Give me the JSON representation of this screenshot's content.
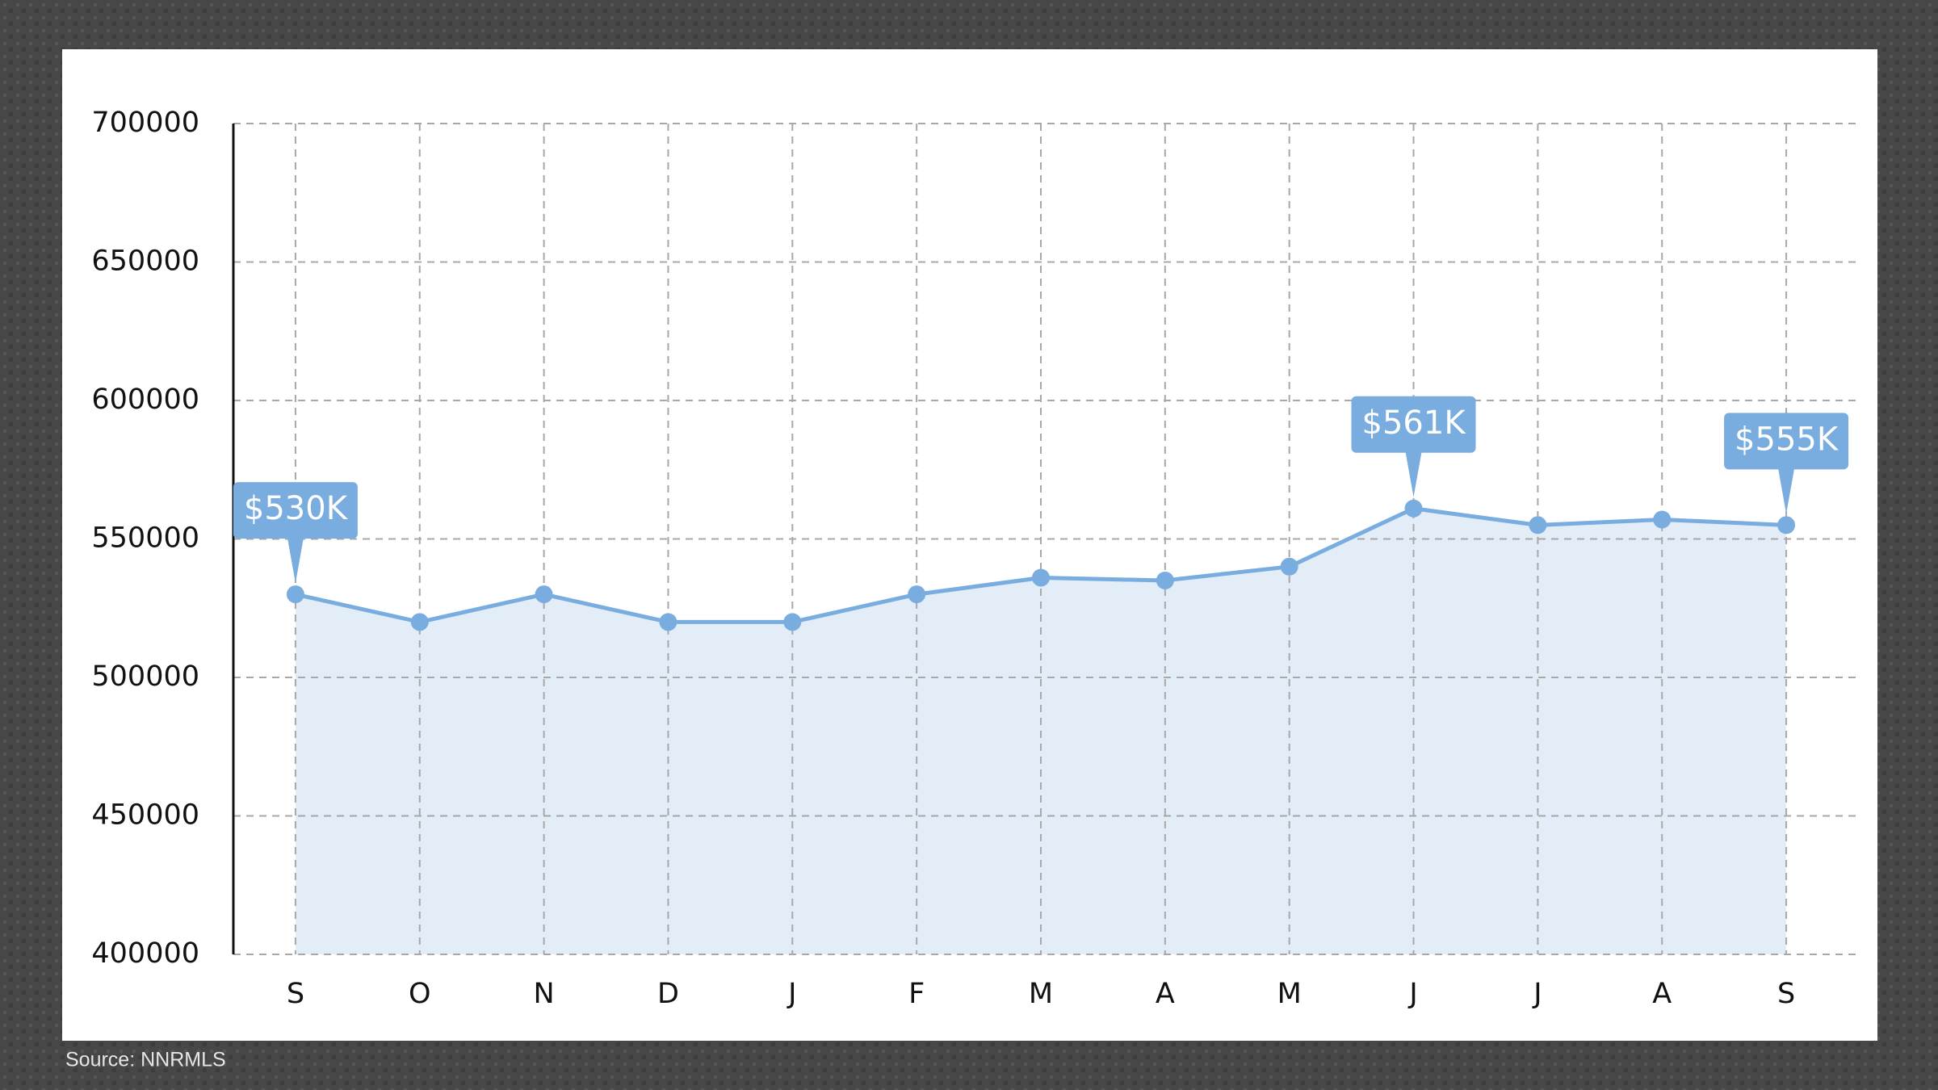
{
  "chart_data": {
    "type": "line",
    "categories": [
      "S",
      "O",
      "N",
      "D",
      "J",
      "F",
      "M",
      "A",
      "M",
      "J",
      "J",
      "A",
      "S"
    ],
    "values": [
      530000,
      520000,
      530000,
      520000,
      520000,
      530000,
      536000,
      535000,
      540000,
      561000,
      555000,
      557000,
      555000
    ],
    "value_labels": [
      "$530K",
      null,
      null,
      null,
      null,
      null,
      null,
      null,
      null,
      "$561K",
      null,
      null,
      "$555K"
    ],
    "color": "#7aaddf",
    "fill": "#e3edf8",
    "ylim": [
      400000,
      700000
    ],
    "yticks": [
      400000,
      450000,
      500000,
      550000,
      600000,
      650000,
      700000
    ],
    "grid": true,
    "source": "Source: NNRMLS"
  }
}
